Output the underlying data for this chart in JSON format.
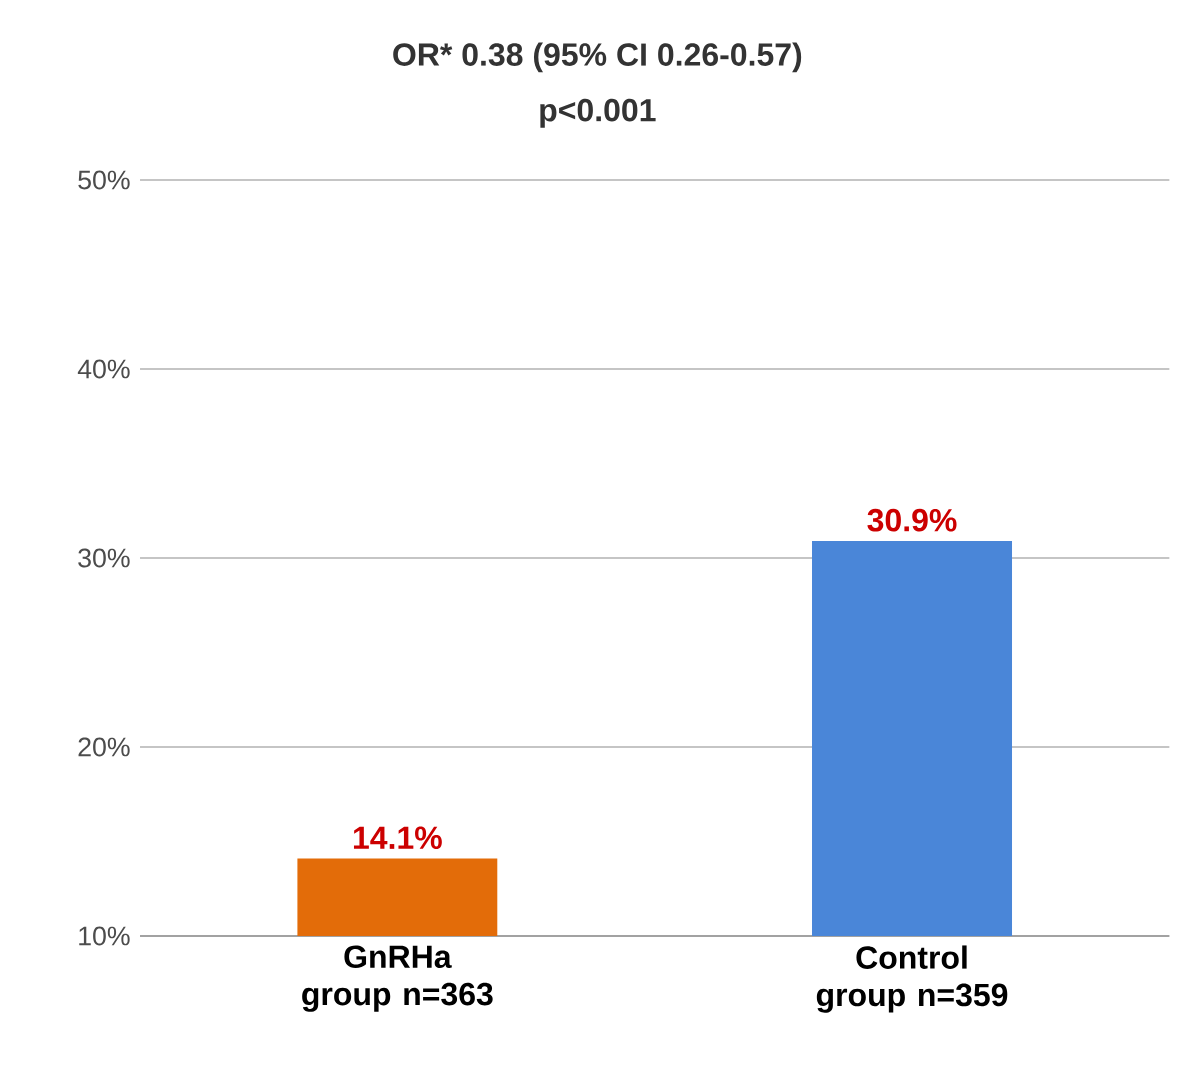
{
  "chart_data": {
    "type": "bar",
    "title": "OR* 0.38 (95% CI 0.26-0.57)",
    "subtitle": "p<0.001",
    "categories": [
      "GnRHa group n=363",
      "Control group n=359"
    ],
    "values": [
      14.1,
      30.9
    ],
    "colors": [
      "#e36c09",
      "#4a86d8"
    ],
    "value_labels": [
      "14.1%",
      "30.9%"
    ],
    "ylim": [
      10,
      50
    ],
    "yticks": [
      {
        "value": 10,
        "label": "10%"
      },
      {
        "value": 20,
        "label": "20%"
      },
      {
        "value": 30,
        "label": "30%"
      },
      {
        "value": 40,
        "label": "40%"
      },
      {
        "value": 50,
        "label": "50%"
      }
    ],
    "grid": "y"
  }
}
